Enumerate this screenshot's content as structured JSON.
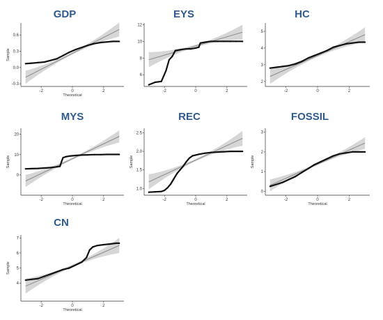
{
  "chart_data": [
    {
      "type": "scatter",
      "title": "GDP",
      "xlabel": "Theoretical",
      "ylabel": "Sample",
      "xlim": [
        -3.3,
        3.3
      ],
      "ylim": [
        -0.35,
        0.82
      ],
      "xticks": [
        -2,
        0,
        2
      ],
      "yticks": [
        -0.3,
        0.0,
        0.3,
        0.6
      ],
      "ytick_labels": [
        "-0.3",
        "0.0",
        "0.3",
        "0.6"
      ],
      "reference_line": {
        "x": [
          -3.0,
          3.0
        ],
        "y": [
          -0.18,
          0.7
        ]
      },
      "band_halfwidth": [
        0.12,
        0.02,
        0.13
      ],
      "series": [
        {
          "x": [
            -3.0,
            -2.6,
            -2.2,
            -1.8,
            -1.4,
            -1.0,
            -0.6,
            -0.2,
            0.2,
            0.6,
            1.0,
            1.4,
            1.8,
            2.2,
            2.6,
            3.0
          ],
          "y": [
            0.07,
            0.08,
            0.09,
            0.1,
            0.13,
            0.16,
            0.22,
            0.28,
            0.33,
            0.37,
            0.41,
            0.44,
            0.46,
            0.47,
            0.48,
            0.48
          ]
        }
      ]
    },
    {
      "type": "scatter",
      "title": "EYS",
      "xlabel": "",
      "ylabel": "",
      "xlim": [
        -3.3,
        3.3
      ],
      "ylim": [
        4.6,
        12.2
      ],
      "xticks": [
        -2,
        0,
        2
      ],
      "yticks": [
        6,
        8,
        10,
        12
      ],
      "ytick_labels": [
        "6",
        "8",
        "10",
        "12"
      ],
      "reference_line": {
        "x": [
          -3.0,
          3.0
        ],
        "y": [
          7.8,
          11.1
        ]
      },
      "band_halfwidth": [
        0.9,
        0.15,
        0.9
      ],
      "series": [
        {
          "x": [
            -3.0,
            -2.6,
            -2.2,
            -1.9,
            -1.7,
            -1.5,
            -1.3,
            -1.0,
            -0.6,
            -0.3,
            0.0,
            0.2,
            0.3,
            0.6,
            1.0,
            1.4,
            1.8,
            2.2,
            2.6,
            3.0
          ],
          "y": [
            4.8,
            5.1,
            5.2,
            6.5,
            7.8,
            8.2,
            8.9,
            9.0,
            9.1,
            9.1,
            9.2,
            9.3,
            9.8,
            9.9,
            10.0,
            10.0,
            10.0,
            10.0,
            10.0,
            10.0
          ]
        }
      ]
    },
    {
      "type": "scatter",
      "title": "HC",
      "xlabel": "",
      "ylabel": "",
      "xlim": [
        -3.3,
        3.3
      ],
      "ylim": [
        1.7,
        5.5
      ],
      "xticks": [
        -2,
        0,
        2
      ],
      "yticks": [
        2,
        3,
        4,
        5
      ],
      "ytick_labels": [
        "2",
        "3",
        "4",
        "5"
      ],
      "reference_line": {
        "x": [
          -3.0,
          3.0
        ],
        "y": [
          2.3,
          4.8
        ]
      },
      "band_halfwidth": [
        0.45,
        0.08,
        0.45
      ],
      "series": [
        {
          "x": [
            -3.0,
            -2.6,
            -2.2,
            -1.8,
            -1.4,
            -1.0,
            -0.6,
            -0.2,
            0.2,
            0.6,
            1.0,
            1.4,
            1.8,
            2.2,
            2.6,
            3.0
          ],
          "y": [
            2.8,
            2.85,
            2.9,
            2.95,
            3.05,
            3.2,
            3.4,
            3.55,
            3.7,
            3.85,
            4.05,
            4.15,
            4.25,
            4.3,
            4.35,
            4.35
          ]
        }
      ]
    },
    {
      "type": "scatter",
      "title": "MYS",
      "xlabel": "Theoretical",
      "ylabel": "Sample",
      "xlim": [
        -3.3,
        3.3
      ],
      "ylim": [
        -10,
        23
      ],
      "xticks": [
        -2,
        0,
        2
      ],
      "yticks": [
        0,
        10,
        20
      ],
      "ytick_labels": [
        "0",
        "10",
        "20"
      ],
      "reference_line": {
        "x": [
          -3.0,
          3.0
        ],
        "y": [
          -3.0,
          19.0
        ]
      },
      "band_halfwidth": [
        3.0,
        0.5,
        3.0
      ],
      "series": [
        {
          "x": [
            -3.0,
            -2.6,
            -2.2,
            -1.8,
            -1.4,
            -1.0,
            -0.8,
            -0.7,
            -0.6,
            -0.4,
            -0.2,
            0.2,
            0.6,
            1.0,
            1.4,
            1.8,
            2.2,
            2.6,
            3.0
          ],
          "y": [
            3.0,
            3.1,
            3.2,
            3.4,
            3.6,
            4.0,
            4.2,
            6.5,
            8.5,
            9.0,
            9.3,
            9.6,
            9.8,
            9.9,
            10.0,
            10.0,
            10.1,
            10.1,
            10.1
          ]
        }
      ]
    },
    {
      "type": "scatter",
      "title": "REC",
      "xlabel": "Theoretical",
      "ylabel": "Sample",
      "xlim": [
        -3.3,
        3.3
      ],
      "ylim": [
        0.82,
        2.62
      ],
      "xticks": [
        -2,
        0,
        2
      ],
      "yticks": [
        1.0,
        1.5,
        2.0,
        2.5
      ],
      "ytick_labels": [
        "1.0",
        "1.5",
        "2.0",
        "2.5"
      ],
      "reference_line": {
        "x": [
          -3.0,
          3.0
        ],
        "y": [
          1.18,
          2.35
        ]
      },
      "band_halfwidth": [
        0.2,
        0.03,
        0.2
      ],
      "series": [
        {
          "x": [
            -3.0,
            -2.6,
            -2.2,
            -2.0,
            -1.8,
            -1.6,
            -1.4,
            -1.2,
            -1.0,
            -0.8,
            -0.6,
            -0.4,
            -0.2,
            0.2,
            0.6,
            1.0,
            1.4,
            1.8,
            2.2,
            2.6,
            3.0
          ],
          "y": [
            0.9,
            0.91,
            0.92,
            0.95,
            1.02,
            1.12,
            1.26,
            1.4,
            1.5,
            1.6,
            1.72,
            1.82,
            1.88,
            1.92,
            1.95,
            1.97,
            1.98,
            1.99,
            2.0,
            2.0,
            2.0
          ]
        }
      ]
    },
    {
      "type": "scatter",
      "title": "FOSSIL",
      "xlabel": "Theoretical",
      "ylabel": "Sample",
      "xlim": [
        -3.3,
        3.3
      ],
      "ylim": [
        -0.2,
        3.2
      ],
      "xticks": [
        -2,
        0,
        2
      ],
      "yticks": [
        0,
        1,
        2,
        3
      ],
      "ytick_labels": [
        "0",
        "1",
        "2",
        "3"
      ],
      "reference_line": {
        "x": [
          -3.0,
          3.0
        ],
        "y": [
          0.3,
          2.45
        ]
      },
      "band_halfwidth": [
        0.3,
        0.05,
        0.3
      ],
      "series": [
        {
          "x": [
            -3.0,
            -2.6,
            -2.2,
            -1.8,
            -1.4,
            -1.0,
            -0.6,
            -0.2,
            0.2,
            0.6,
            1.0,
            1.4,
            1.8,
            2.2,
            2.6,
            3.0
          ],
          "y": [
            0.25,
            0.35,
            0.45,
            0.6,
            0.75,
            0.95,
            1.15,
            1.35,
            1.5,
            1.65,
            1.8,
            1.9,
            1.95,
            2.0,
            2.0,
            2.0
          ]
        }
      ]
    },
    {
      "type": "scatter",
      "title": "CN",
      "xlabel": "Theoretical",
      "ylabel": "Sample",
      "xlim": [
        -3.3,
        3.3
      ],
      "ylim": [
        2.8,
        7.2
      ],
      "xticks": [
        -2,
        0,
        2
      ],
      "yticks": [
        4,
        5,
        6,
        7
      ],
      "ytick_labels": [
        "4",
        "5",
        "6",
        "7"
      ],
      "reference_line": {
        "x": [
          -3.0,
          3.0
        ],
        "y": [
          3.8,
          6.5
        ]
      },
      "band_halfwidth": [
        0.5,
        0.08,
        0.5
      ],
      "series": [
        {
          "x": [
            -3.0,
            -2.6,
            -2.2,
            -1.8,
            -1.4,
            -1.0,
            -0.6,
            -0.2,
            0.2,
            0.6,
            0.9,
            1.1,
            1.3,
            1.6,
            2.0,
            2.4,
            2.8,
            3.0
          ],
          "y": [
            4.2,
            4.25,
            4.3,
            4.45,
            4.6,
            4.75,
            4.9,
            5.0,
            5.2,
            5.4,
            5.7,
            6.2,
            6.4,
            6.5,
            6.55,
            6.6,
            6.65,
            6.65
          ]
        }
      ]
    }
  ]
}
